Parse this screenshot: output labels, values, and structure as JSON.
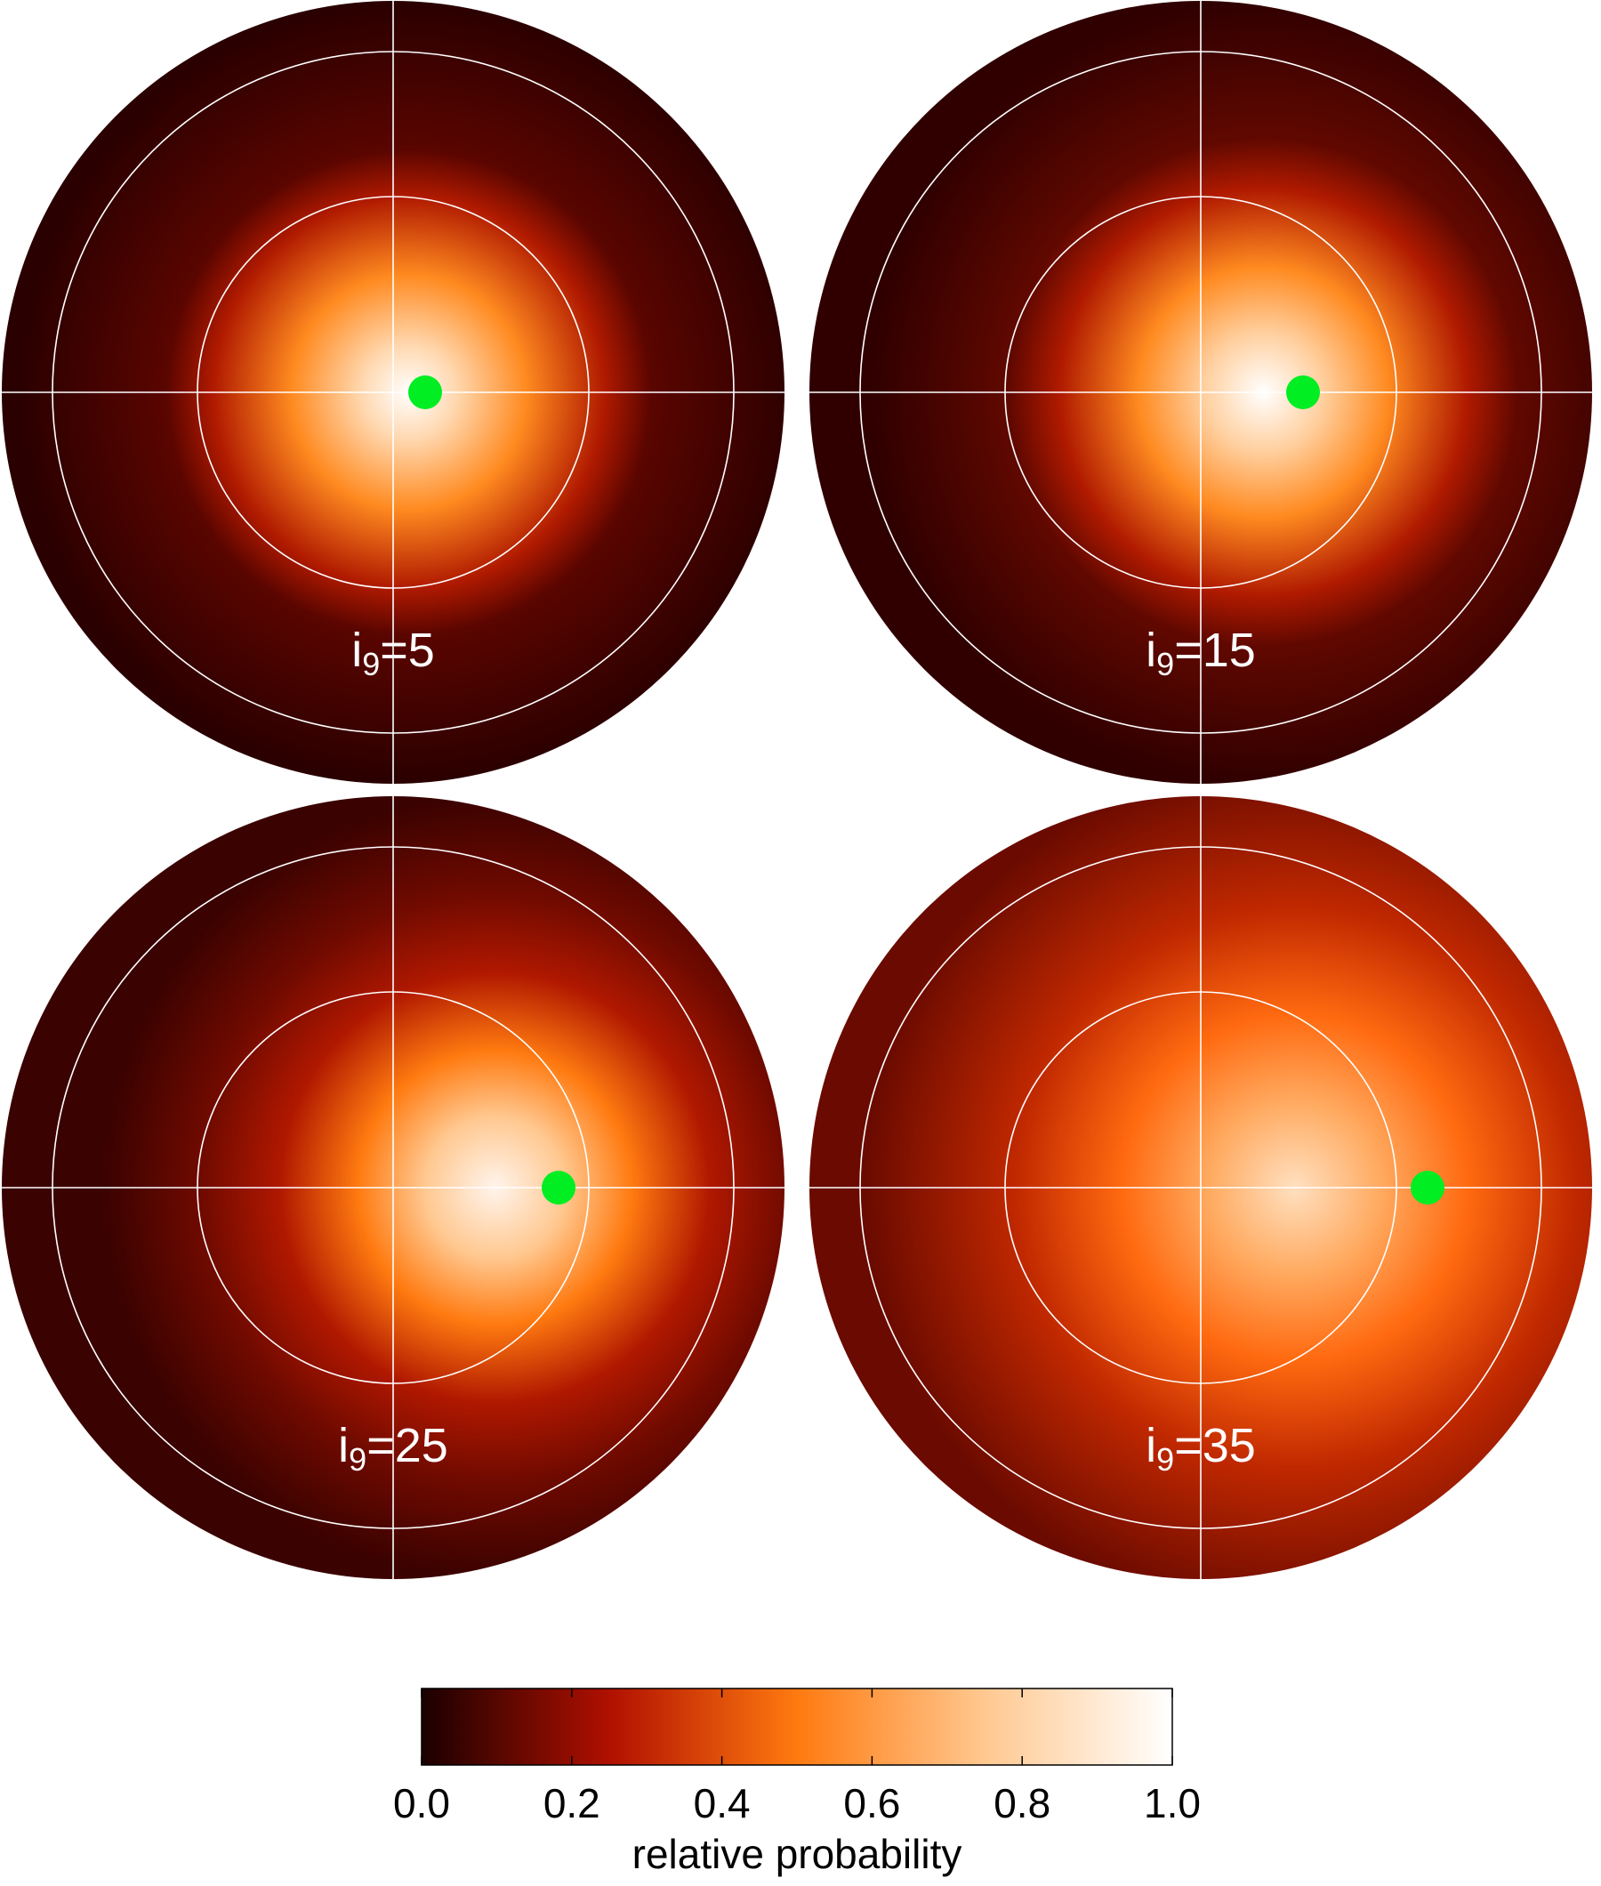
{
  "chart_data": {
    "type": "polar-heatmap",
    "panels": [
      {
        "label_main": "i",
        "label_sub": "9",
        "label_rest": "=5"
      },
      {
        "label_main": "i",
        "label_sub": "9",
        "label_rest": "=15"
      },
      {
        "label_main": "i",
        "label_sub": "9",
        "label_rest": "=25"
      },
      {
        "label_main": "i",
        "label_sub": "9",
        "label_rest": "=35"
      }
    ],
    "colormap": [
      "#1a0000",
      "#b01000",
      "#ff7a10",
      "#ffc890",
      "#ffffff"
    ],
    "clim": [
      0,
      1
    ],
    "cticks": [
      {
        "value": 0,
        "label": "0.0"
      },
      {
        "value": 0.2,
        "label": "0.2"
      },
      {
        "value": 0.4,
        "label": "0.4"
      },
      {
        "value": 0.6,
        "label": "0.6"
      },
      {
        "value": 0.8,
        "label": "0.8"
      },
      {
        "value": 1,
        "label": "1.0"
      }
    ],
    "colorbar_label": "relative probability"
  }
}
